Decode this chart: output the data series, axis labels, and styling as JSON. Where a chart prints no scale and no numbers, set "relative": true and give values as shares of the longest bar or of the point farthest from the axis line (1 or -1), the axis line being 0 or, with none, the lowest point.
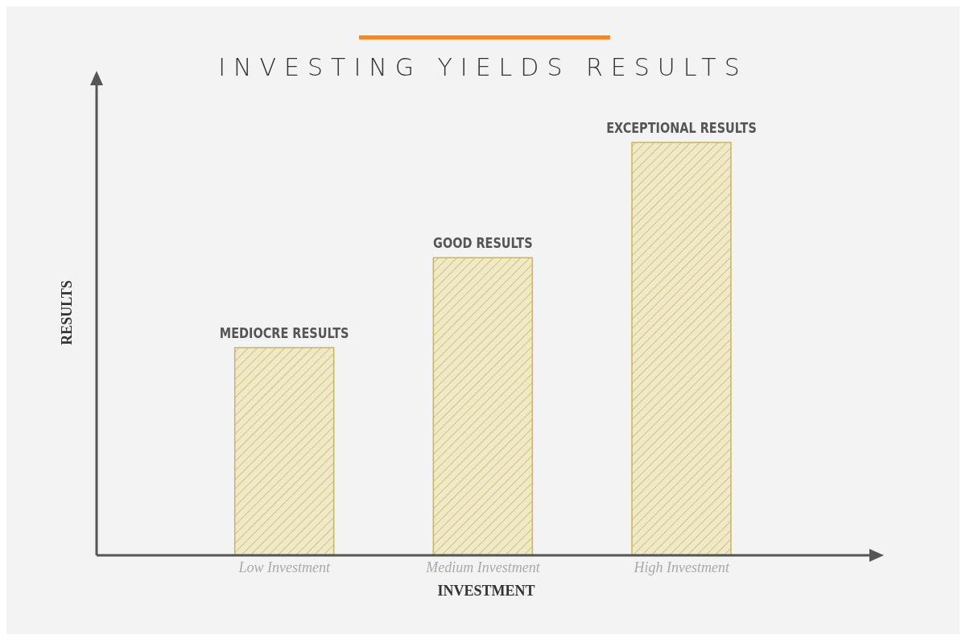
{
  "chart_data": {
    "type": "bar",
    "title": "INVESTING YIELDS RESULTS",
    "xlabel": "INVESTMENT",
    "ylabel": "RESULTS",
    "categories": [
      "Low Investment",
      "Medium Investment",
      "High Investment"
    ],
    "values": [
      0.503,
      0.721,
      1
    ],
    "color": "#c8b560",
    "relative": true,
    "grid": false,
    "legend": false,
    "annotations": [
      {
        "text": "MEDIOCRE RESULTS",
        "x": "Low Investment",
        "y": 0.503
      },
      {
        "text": "GOOD RESULTS",
        "x": "Medium Investment",
        "y": 0.721
      },
      {
        "text": "EXCEPTIONAL RESULTS",
        "x": "High Investment",
        "y": 1
      }
    ]
  }
}
